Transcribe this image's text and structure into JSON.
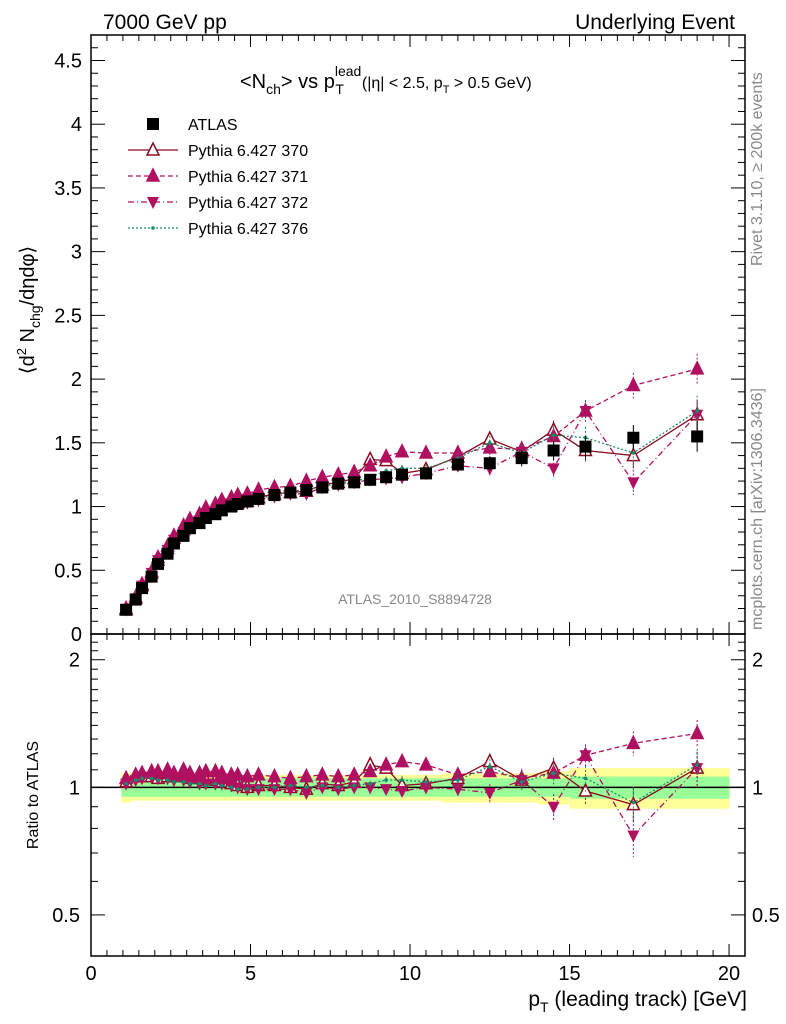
{
  "header": {
    "left": "7000 GeV pp",
    "right": "Underlying Event"
  },
  "side_labels": {
    "rivet": "Rivet 3.1.10, ≥ 200k events",
    "mcplots": "mcplots.cern.ch [arXiv:1306.3436]"
  },
  "watermark": "ATLAS_2010_S8894728",
  "plot_title": {
    "main": "<N",
    "sub1": "ch",
    "mid": "> vs p",
    "sup": "lead",
    "sub2": "T",
    "cuts_a": "(|η| < 2.5, p",
    "cuts_sub": "T",
    "cuts_b": " > 0.5 GeV)"
  },
  "ylabel_top": "⟨d² N_chg/dηdφ⟩",
  "ylabel_bottom": "Ratio to ATLAS",
  "xlabel": "p_T (leading track) [GeV]",
  "chart_data": [
    {
      "type": "scatter",
      "panel": "main",
      "xlim": [
        0,
        20.5
      ],
      "ylim": [
        0,
        4.7
      ],
      "xticks": [
        0,
        5,
        10,
        15,
        20
      ],
      "yticks": [
        0,
        0.5,
        1,
        1.5,
        2,
        2.5,
        3,
        3.5,
        4,
        4.5
      ],
      "ytick_labels": [
        "0",
        "0.5",
        "1",
        "1.5",
        "2",
        "2.5",
        "3",
        "3.5",
        "4",
        "4.5"
      ],
      "legend_position": "top-left",
      "x": [
        1.1,
        1.4,
        1.6,
        1.9,
        2.1,
        2.4,
        2.6,
        2.9,
        3.1,
        3.4,
        3.6,
        3.9,
        4.1,
        4.4,
        4.6,
        4.9,
        5.25,
        5.75,
        6.25,
        6.75,
        7.25,
        7.75,
        8.25,
        8.75,
        9.25,
        9.75,
        10.5,
        11.5,
        12.5,
        13.5,
        14.5,
        15.5,
        17.0,
        19.0
      ],
      "series": [
        {
          "name": "ATLAS",
          "marker": "square",
          "color": "#000000",
          "line": "none",
          "values": [
            0.19,
            0.27,
            0.36,
            0.45,
            0.55,
            0.63,
            0.71,
            0.77,
            0.83,
            0.87,
            0.91,
            0.94,
            0.97,
            1.0,
            1.02,
            1.04,
            1.06,
            1.09,
            1.11,
            1.13,
            1.15,
            1.18,
            1.19,
            1.21,
            1.23,
            1.25,
            1.26,
            1.33,
            1.34,
            1.38,
            1.44,
            1.47,
            1.54,
            1.55
          ]
        },
        {
          "name": "Pythia 6.427 370",
          "marker": "triangle-up-open",
          "color": "#8b0a1e",
          "line": "solid",
          "values": [
            0.19,
            0.28,
            0.38,
            0.48,
            0.58,
            0.67,
            0.75,
            0.82,
            0.87,
            0.91,
            0.95,
            0.98,
            1.0,
            1.02,
            1.03,
            1.04,
            1.07,
            1.1,
            1.11,
            1.12,
            1.17,
            1.19,
            1.22,
            1.37,
            1.36,
            1.26,
            1.29,
            1.39,
            1.53,
            1.43,
            1.6,
            1.44,
            1.4,
            1.72
          ]
        },
        {
          "name": "Pythia 6.427 371",
          "marker": "triangle-up",
          "color": "#b01060",
          "line": "dashed",
          "values": [
            0.2,
            0.29,
            0.39,
            0.49,
            0.6,
            0.69,
            0.77,
            0.85,
            0.9,
            0.94,
            0.99,
            1.02,
            1.05,
            1.07,
            1.09,
            1.1,
            1.13,
            1.15,
            1.16,
            1.2,
            1.23,
            1.25,
            1.27,
            1.32,
            1.39,
            1.43,
            1.42,
            1.42,
            1.46,
            1.45,
            1.55,
            1.75,
            1.95,
            2.08
          ]
        },
        {
          "name": "Pythia 6.427 372",
          "marker": "triangle-down",
          "color": "#b01060",
          "line": "dashdot",
          "values": [
            0.19,
            0.28,
            0.38,
            0.48,
            0.58,
            0.66,
            0.74,
            0.8,
            0.85,
            0.89,
            0.93,
            0.96,
            0.99,
            1.01,
            1.02,
            1.03,
            1.05,
            1.08,
            1.1,
            1.1,
            1.15,
            1.17,
            1.19,
            1.21,
            1.22,
            1.23,
            1.26,
            1.32,
            1.3,
            1.43,
            1.3,
            1.75,
            1.19,
            1.72
          ]
        },
        {
          "name": "Pythia 6.427 376",
          "marker": "dot",
          "color": "#1a8a6a",
          "line": "dotted",
          "values": [
            0.19,
            0.28,
            0.38,
            0.47,
            0.57,
            0.66,
            0.73,
            0.79,
            0.85,
            0.89,
            0.92,
            0.96,
            0.98,
            1.0,
            1.01,
            1.03,
            1.06,
            1.09,
            1.12,
            1.13,
            1.16,
            1.18,
            1.2,
            1.23,
            1.28,
            1.3,
            1.3,
            1.38,
            1.5,
            1.42,
            1.56,
            1.54,
            1.42,
            1.75
          ]
        }
      ]
    },
    {
      "type": "scatter",
      "panel": "ratio",
      "xlim": [
        0,
        20.5
      ],
      "ylim": [
        0.4,
        2.3
      ],
      "ylog": true,
      "yticks": [
        0.5,
        1,
        2
      ],
      "ytick_labels": [
        "0.5",
        "1",
        "2"
      ],
      "x": [
        1.1,
        1.4,
        1.6,
        1.9,
        2.1,
        2.4,
        2.6,
        2.9,
        3.1,
        3.4,
        3.6,
        3.9,
        4.1,
        4.4,
        4.6,
        4.9,
        5.25,
        5.75,
        6.25,
        6.75,
        7.25,
        7.75,
        8.25,
        8.75,
        9.25,
        9.75,
        10.5,
        11.5,
        12.5,
        13.5,
        14.5,
        15.5,
        17.0,
        19.0
      ],
      "band_green": [
        0.05,
        0.05,
        0.05,
        0.05,
        0.05,
        0.05,
        0.05,
        0.05,
        0.05,
        0.05,
        0.05,
        0.05,
        0.05,
        0.05,
        0.05,
        0.05,
        0.05,
        0.05,
        0.05,
        0.05,
        0.05,
        0.05,
        0.05,
        0.05,
        0.05,
        0.05,
        0.05,
        0.05,
        0.05,
        0.05,
        0.05,
        0.06,
        0.06,
        0.06
      ],
      "band_yellow": [
        0.08,
        0.07,
        0.07,
        0.07,
        0.07,
        0.07,
        0.07,
        0.07,
        0.07,
        0.07,
        0.07,
        0.07,
        0.07,
        0.07,
        0.07,
        0.07,
        0.07,
        0.07,
        0.07,
        0.07,
        0.07,
        0.07,
        0.07,
        0.07,
        0.07,
        0.07,
        0.07,
        0.08,
        0.08,
        0.08,
        0.09,
        0.11,
        0.11,
        0.11
      ],
      "series": [
        {
          "name": "Pythia 6.427 370",
          "values": [
            1.03,
            1.06,
            1.06,
            1.06,
            1.05,
            1.06,
            1.06,
            1.06,
            1.05,
            1.05,
            1.04,
            1.04,
            1.03,
            1.02,
            1.01,
            1.0,
            1.01,
            1.01,
            1.0,
            0.99,
            1.02,
            1.01,
            1.03,
            1.13,
            1.11,
            1.01,
            1.02,
            1.05,
            1.15,
            1.04,
            1.11,
            0.98,
            0.91,
            1.11
          ]
        },
        {
          "name": "Pythia 6.427 371",
          "values": [
            1.05,
            1.07,
            1.08,
            1.09,
            1.09,
            1.1,
            1.08,
            1.1,
            1.08,
            1.08,
            1.09,
            1.09,
            1.08,
            1.07,
            1.07,
            1.06,
            1.07,
            1.06,
            1.05,
            1.06,
            1.07,
            1.06,
            1.07,
            1.09,
            1.13,
            1.15,
            1.13,
            1.07,
            1.09,
            1.05,
            1.08,
            1.19,
            1.27,
            1.34
          ]
        },
        {
          "name": "Pythia 6.427 372",
          "values": [
            1.02,
            1.04,
            1.05,
            1.06,
            1.05,
            1.05,
            1.04,
            1.04,
            1.03,
            1.02,
            1.02,
            1.02,
            1.02,
            1.01,
            1.0,
            0.99,
            0.99,
            0.99,
            0.99,
            0.97,
            1.0,
            0.99,
            1.0,
            1.0,
            0.99,
            0.98,
            1.0,
            0.99,
            0.97,
            1.04,
            0.9,
            1.19,
            0.77,
            1.11
          ]
        },
        {
          "name": "Pythia 6.427 376",
          "values": [
            1.02,
            1.04,
            1.05,
            1.05,
            1.04,
            1.04,
            1.03,
            1.03,
            1.02,
            1.02,
            1.01,
            1.02,
            1.01,
            1.0,
            0.99,
            0.99,
            1.0,
            1.0,
            1.01,
            1.0,
            1.01,
            1.0,
            1.01,
            1.02,
            1.04,
            1.04,
            1.03,
            1.04,
            1.12,
            1.03,
            1.08,
            1.05,
            0.92,
            1.13
          ]
        }
      ]
    }
  ]
}
